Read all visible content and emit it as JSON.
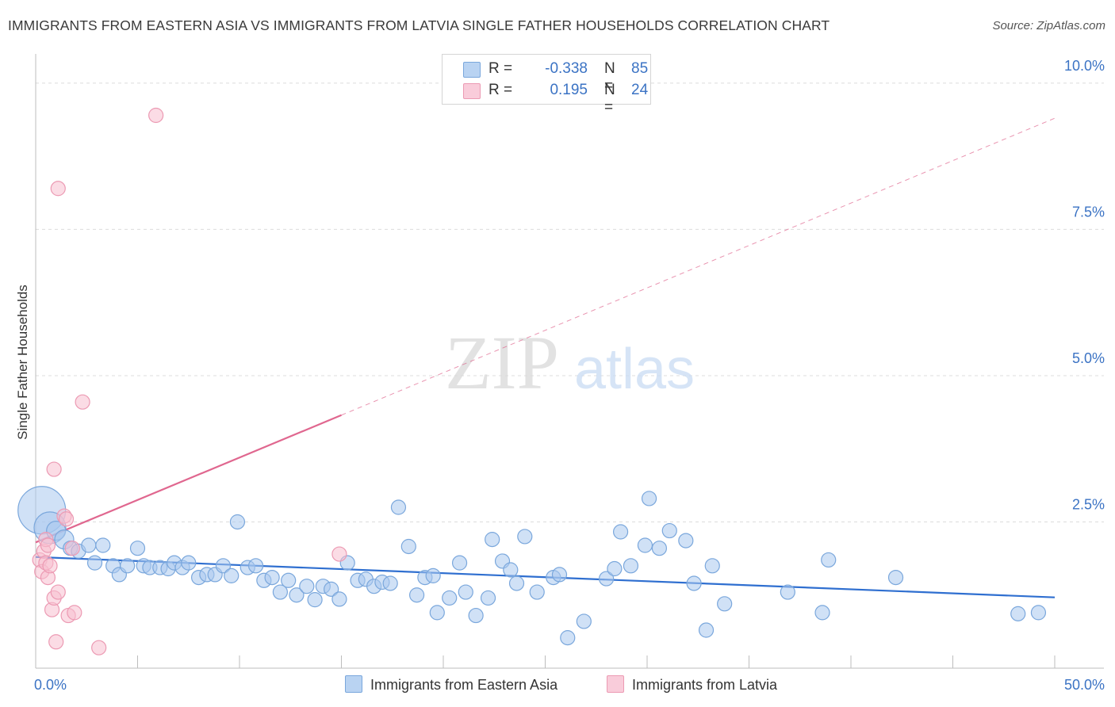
{
  "title": "IMMIGRANTS FROM EASTERN ASIA VS IMMIGRANTS FROM LATVIA SINGLE FATHER HOUSEHOLDS CORRELATION CHART",
  "source": "Source: ZipAtlas.com",
  "watermark": {
    "zip": "ZIP",
    "atlas": "atlas"
  },
  "legend": {
    "rows": [
      {
        "r_label": "R =",
        "r_value": "-0.338",
        "n_label": "N =",
        "n_value": "85"
      },
      {
        "r_label": "R =",
        "r_value": "0.195",
        "n_label": "N =",
        "n_value": "24"
      }
    ]
  },
  "bottom_legend": {
    "series_a": "Immigrants from Eastern Asia",
    "series_b": "Immigrants from Latvia"
  },
  "colors": {
    "blue_fill": "#a9c8ef",
    "blue_stroke": "#7aa7dc",
    "blue_line": "#2f6fd0",
    "pink_fill": "#f7bfd0",
    "pink_stroke": "#ec9ab3",
    "pink_line": "#e0678f",
    "tick_label": "#3b73c4",
    "grid": "#dcdcdc"
  },
  "chart_data": {
    "type": "scatter",
    "ylabel": "Single Father Households",
    "xlim": [
      0,
      50
    ],
    "ylim": [
      0,
      10.5
    ],
    "y_ticks": [
      {
        "value": 2.5,
        "label": "2.5%"
      },
      {
        "value": 5.0,
        "label": "5.0%"
      },
      {
        "value": 7.5,
        "label": "7.5%"
      },
      {
        "value": 10.0,
        "label": "10.0%"
      }
    ],
    "x_tick_labels": [
      {
        "value": 0,
        "label": "0.0%"
      },
      {
        "value": 50,
        "label": "50.0%"
      }
    ],
    "x_minor_ticks": [
      5,
      10,
      15,
      20,
      25,
      30,
      35,
      40,
      45,
      50
    ],
    "grid": true,
    "series": [
      {
        "name": "Immigrants from Eastern Asia",
        "color": "blue",
        "trend": {
          "x": [
            0,
            50
          ],
          "y": [
            1.9,
            1.21
          ],
          "solid_to": 50
        },
        "points": [
          [
            0.3,
            2.7,
            30
          ],
          [
            0.7,
            2.4,
            20
          ],
          [
            1.0,
            2.35,
            12
          ],
          [
            1.4,
            2.2,
            12
          ],
          [
            1.7,
            2.05,
            9
          ],
          [
            2.1,
            2.0,
            9
          ],
          [
            2.6,
            2.1,
            9
          ],
          [
            2.9,
            1.8,
            9
          ],
          [
            3.3,
            2.1,
            9
          ],
          [
            3.8,
            1.75,
            9
          ],
          [
            4.1,
            1.6,
            9
          ],
          [
            4.5,
            1.75,
            9
          ],
          [
            5.0,
            2.05,
            9
          ],
          [
            5.3,
            1.75,
            9
          ],
          [
            5.6,
            1.72,
            9
          ],
          [
            6.1,
            1.72,
            9
          ],
          [
            6.5,
            1.7,
            9
          ],
          [
            6.8,
            1.8,
            9
          ],
          [
            7.2,
            1.72,
            9
          ],
          [
            7.5,
            1.8,
            9
          ],
          [
            8.0,
            1.55,
            9
          ],
          [
            8.4,
            1.6,
            9
          ],
          [
            8.8,
            1.6,
            9
          ],
          [
            9.2,
            1.75,
            9
          ],
          [
            9.6,
            1.58,
            9
          ],
          [
            9.9,
            2.5,
            9
          ],
          [
            10.4,
            1.72,
            9
          ],
          [
            10.8,
            1.75,
            9
          ],
          [
            11.2,
            1.5,
            9
          ],
          [
            11.6,
            1.55,
            9
          ],
          [
            12.0,
            1.3,
            9
          ],
          [
            12.4,
            1.5,
            9
          ],
          [
            12.8,
            1.25,
            9
          ],
          [
            13.3,
            1.4,
            9
          ],
          [
            13.7,
            1.17,
            9
          ],
          [
            14.1,
            1.4,
            9
          ],
          [
            14.5,
            1.35,
            9
          ],
          [
            14.9,
            1.18,
            9
          ],
          [
            15.3,
            1.8,
            9
          ],
          [
            15.8,
            1.5,
            9
          ],
          [
            16.2,
            1.52,
            9
          ],
          [
            16.6,
            1.4,
            9
          ],
          [
            17.0,
            1.47,
            9
          ],
          [
            17.4,
            1.45,
            9
          ],
          [
            17.8,
            2.75,
            9
          ],
          [
            18.3,
            2.08,
            9
          ],
          [
            18.7,
            1.25,
            9
          ],
          [
            19.1,
            1.55,
            9
          ],
          [
            19.5,
            1.58,
            9
          ],
          [
            19.7,
            0.95,
            9
          ],
          [
            20.3,
            1.2,
            9
          ],
          [
            20.8,
            1.8,
            9
          ],
          [
            21.1,
            1.3,
            9
          ],
          [
            21.6,
            0.9,
            9
          ],
          [
            22.2,
            1.2,
            9
          ],
          [
            22.4,
            2.2,
            9
          ],
          [
            22.9,
            1.83,
            9
          ],
          [
            23.3,
            1.68,
            9
          ],
          [
            23.6,
            1.45,
            9
          ],
          [
            24.0,
            2.25,
            9
          ],
          [
            24.6,
            1.3,
            9
          ],
          [
            25.4,
            1.55,
            9
          ],
          [
            25.7,
            1.6,
            9
          ],
          [
            26.1,
            0.52,
            9
          ],
          [
            26.9,
            0.8,
            9
          ],
          [
            28.0,
            1.53,
            9
          ],
          [
            28.4,
            1.7,
            9
          ],
          [
            28.7,
            2.33,
            9
          ],
          [
            29.2,
            1.75,
            9
          ],
          [
            29.9,
            2.1,
            9
          ],
          [
            30.1,
            2.9,
            9
          ],
          [
            30.6,
            2.05,
            9
          ],
          [
            31.1,
            2.35,
            9
          ],
          [
            31.9,
            2.18,
            9
          ],
          [
            32.3,
            1.45,
            9
          ],
          [
            32.9,
            0.65,
            9
          ],
          [
            33.2,
            1.75,
            9
          ],
          [
            33.8,
            1.1,
            9
          ],
          [
            36.9,
            1.3,
            9
          ],
          [
            38.6,
            0.95,
            9
          ],
          [
            38.9,
            1.85,
            9
          ],
          [
            42.2,
            1.55,
            9
          ],
          [
            48.2,
            0.93,
            9
          ],
          [
            49.2,
            0.95,
            9
          ]
        ]
      },
      {
        "name": "Immigrants from Latvia",
        "color": "pink",
        "trend": {
          "x": [
            0,
            50
          ],
          "y": [
            2.15,
            9.4
          ],
          "solid_to": 15
        },
        "points": [
          [
            0.2,
            1.85,
            9
          ],
          [
            0.3,
            1.65,
            9
          ],
          [
            0.4,
            2.0,
            9
          ],
          [
            0.5,
            1.8,
            9
          ],
          [
            0.5,
            2.2,
            9
          ],
          [
            0.6,
            1.55,
            9
          ],
          [
            0.6,
            2.1,
            9
          ],
          [
            0.7,
            1.75,
            9
          ],
          [
            0.8,
            1.0,
            9
          ],
          [
            0.9,
            1.2,
            9
          ],
          [
            0.9,
            3.4,
            9
          ],
          [
            1.0,
            0.45,
            9
          ],
          [
            1.1,
            8.2,
            9
          ],
          [
            1.1,
            1.3,
            9
          ],
          [
            1.4,
            2.6,
            9
          ],
          [
            1.5,
            2.55,
            9
          ],
          [
            1.6,
            0.9,
            9
          ],
          [
            1.8,
            2.05,
            9
          ],
          [
            1.9,
            0.95,
            9
          ],
          [
            2.3,
            4.55,
            9
          ],
          [
            3.1,
            0.35,
            9
          ],
          [
            5.9,
            9.45,
            9
          ],
          [
            14.9,
            1.95,
            9
          ]
        ]
      }
    ]
  }
}
